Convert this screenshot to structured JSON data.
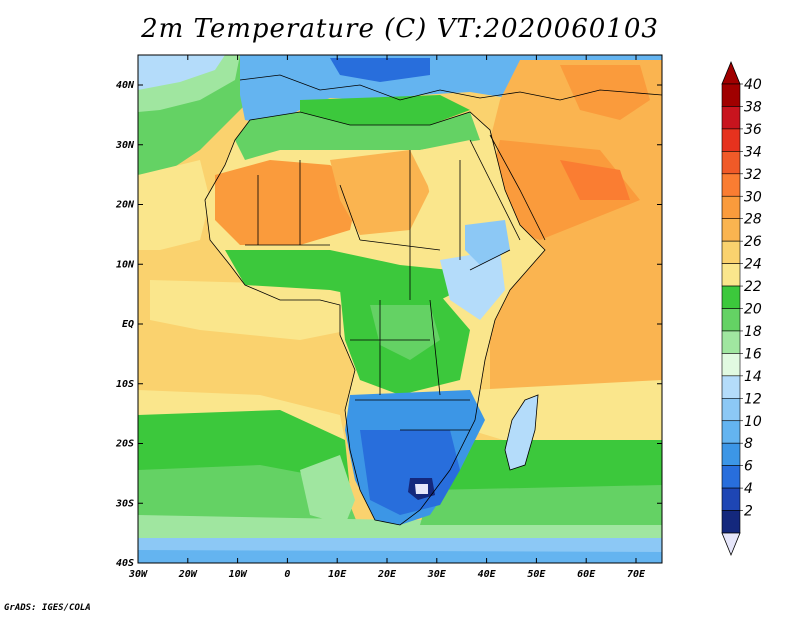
{
  "title": "2m Temperature (C) VT:2020060103",
  "credit": "GrADS: IGES/COLA",
  "lat_labels": [
    "40N",
    "30N",
    "20N",
    "10N",
    "EQ",
    "10S",
    "20S",
    "30S",
    "40S"
  ],
  "lon_labels": [
    "30W",
    "20W",
    "10W",
    "0",
    "10E",
    "20E",
    "30E",
    "40E",
    "50E",
    "60E",
    "70E"
  ],
  "colorbar": {
    "labels": [
      "40",
      "38",
      "36",
      "34",
      "32",
      "30",
      "28",
      "26",
      "24",
      "22",
      "20",
      "18",
      "16",
      "14",
      "12",
      "10",
      "8",
      "6",
      "4",
      "2"
    ],
    "colors": [
      "#a00000",
      "#c8141e",
      "#e6321e",
      "#f05a28",
      "#fa7d32",
      "#fa9b3c",
      "#fab450",
      "#fad26e",
      "#fae68c",
      "#3cc83c",
      "#64d264",
      "#a0e6a0",
      "#e1fae1",
      "#b4dcfa",
      "#8cc8f5",
      "#64b4f0",
      "#3c96e6",
      "#286edc",
      "#1e46b4",
      "#14287d"
    ],
    "over_color": "#a00000",
    "under_color": "#e6e6fa"
  },
  "colors": {
    "ocean_warm": "#fad26e",
    "ocean_hot": "#fab450",
    "ocean_mid": "#fae68c",
    "ocean_cool": "#64d264",
    "ocean_cold": "#a0e6a0",
    "ocean_colder": "#b4dcfa",
    "sahara": "#fa9b3c",
    "land_green": "#3cc83c",
    "south_blue": "#3c96e6",
    "deep_blue": "#286edc",
    "europe_blue": "#64b4f0"
  }
}
